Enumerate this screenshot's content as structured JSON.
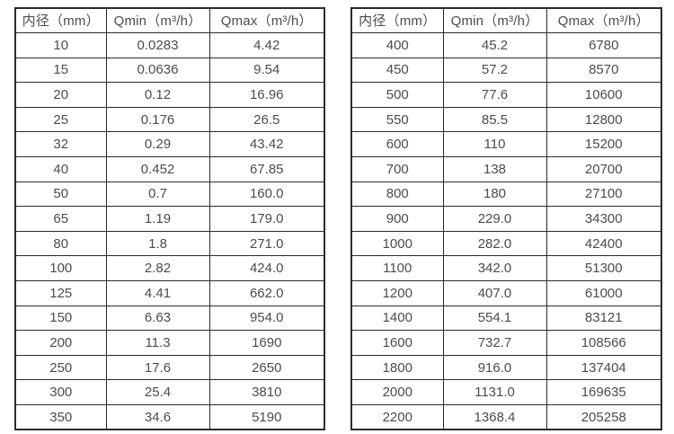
{
  "colors": {
    "background": "#ffffff",
    "border": "#2b2b2b",
    "text": "#4c4c4c"
  },
  "tables": [
    {
      "headers": [
        "内径（mm）",
        "Qmin（m³/h）",
        "Qmax（m³/h）"
      ],
      "rows": [
        [
          "10",
          "0.0283",
          "4.42"
        ],
        [
          "15",
          "0.0636",
          "9.54"
        ],
        [
          "20",
          "0.12",
          "16.96"
        ],
        [
          "25",
          "0.176",
          "26.5"
        ],
        [
          "32",
          "0.29",
          "43.42"
        ],
        [
          "40",
          "0.452",
          "67.85"
        ],
        [
          "50",
          "0.7",
          "160.0"
        ],
        [
          "65",
          "1.19",
          "179.0"
        ],
        [
          "80",
          "1.8",
          "271.0"
        ],
        [
          "100",
          "2.82",
          "424.0"
        ],
        [
          "125",
          "4.41",
          "662.0"
        ],
        [
          "150",
          "6.63",
          "954.0"
        ],
        [
          "200",
          "11.3",
          "1690"
        ],
        [
          "250",
          "17.6",
          "2650"
        ],
        [
          "300",
          "25.4",
          "3810"
        ],
        [
          "350",
          "34.6",
          "5190"
        ]
      ]
    },
    {
      "headers": [
        "内径（mm）",
        "Qmin（m³/h）",
        "Qmax（m³/h）"
      ],
      "rows": [
        [
          "400",
          "45.2",
          "6780"
        ],
        [
          "450",
          "57.2",
          "8570"
        ],
        [
          "500",
          "77.6",
          "10600"
        ],
        [
          "550",
          "85.5",
          "12800"
        ],
        [
          "600",
          "110",
          "15200"
        ],
        [
          "700",
          "138",
          "20700"
        ],
        [
          "800",
          "180",
          "27100"
        ],
        [
          "900",
          "229.0",
          "34300"
        ],
        [
          "1000",
          "282.0",
          "42400"
        ],
        [
          "1100",
          "342.0",
          "51300"
        ],
        [
          "1200",
          "407.0",
          "61000"
        ],
        [
          "1400",
          "554.1",
          "83121"
        ],
        [
          "1600",
          "732.7",
          "108566"
        ],
        [
          "1800",
          "916.0",
          "137404"
        ],
        [
          "2000",
          "1131.0",
          "169635"
        ],
        [
          "2200",
          "1368.4",
          "205258"
        ]
      ]
    }
  ]
}
